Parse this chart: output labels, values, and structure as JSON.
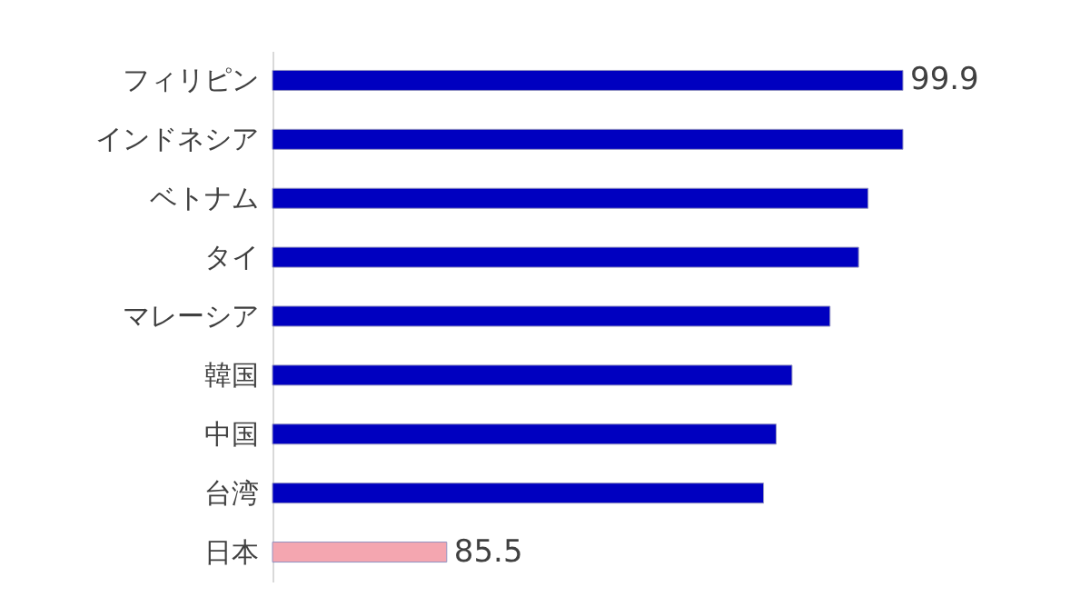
{
  "chart_data": {
    "type": "bar",
    "orientation": "horizontal",
    "categories": [
      "フィリピン",
      "インドネシア",
      "ベトナム",
      "タイ",
      "マレーシア",
      "韓国",
      "中国",
      "台湾",
      "日本"
    ],
    "values": [
      99.9,
      99.9,
      98.8,
      98.5,
      97.6,
      96.4,
      95.9,
      95.5,
      85.5
    ],
    "colors": [
      "#0000c0",
      "#0000c0",
      "#0000c0",
      "#0000c0",
      "#0000c0",
      "#0000c0",
      "#0000c0",
      "#0000c0",
      "#f4a6b0"
    ],
    "value_labels": [
      "99.9",
      null,
      null,
      null,
      null,
      null,
      null,
      null,
      "85.5"
    ],
    "xlim": [
      80,
      99.9
    ],
    "tick_labels": "y",
    "grid": false
  }
}
